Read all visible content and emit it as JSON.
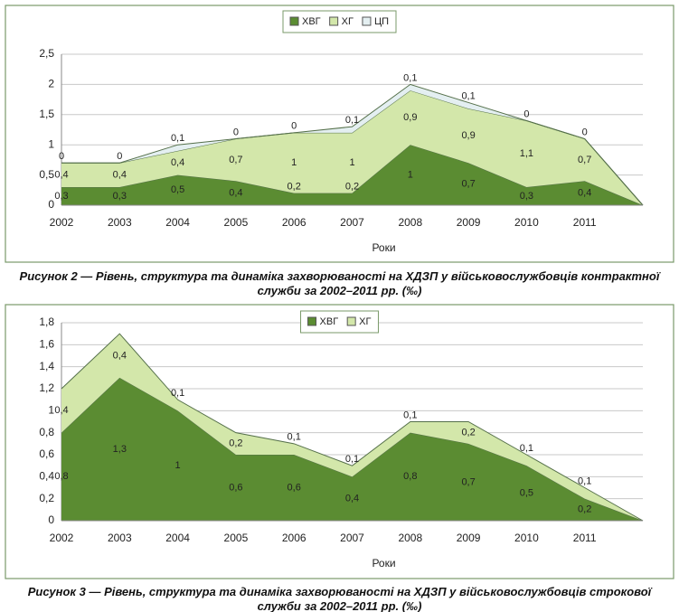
{
  "chart_data": [
    {
      "type": "stacked_area",
      "categories": [
        "2002",
        "2003",
        "2004",
        "2005",
        "2006",
        "2007",
        "2008",
        "2009",
        "2010",
        "2011",
        null
      ],
      "x_label": "Роки",
      "caption": "Рисунок 2 — Рівень, структура та динаміка захворюваності на ХДЗП у військовослужбовців контрактної служби за 2002–2011 рр. (‰)",
      "ylim": [
        0,
        2.5
      ],
      "yticks": [
        0,
        {
          "value": 0.5,
          "label": "0,5"
        },
        1,
        {
          "value": 1.5,
          "label": "1,5"
        },
        2,
        {
          "value": 2.5,
          "label": "2,5"
        }
      ],
      "grid": true,
      "legend": "top",
      "series": [
        {
          "name": "ХВГ",
          "color": "#5b8c32",
          "values": [
            0.3,
            0.3,
            0.5,
            0.4,
            0.2,
            0.2,
            1,
            0.7,
            0.3,
            0.4,
            0
          ],
          "value_labels": [
            "0,3",
            "0,3",
            "0,5",
            "0,4",
            "0,2",
            "0,2",
            "1",
            "0,7",
            "0,3",
            "0,4",
            null
          ]
        },
        {
          "name": "ХГ",
          "color": "#d3e7aa",
          "values": [
            0.4,
            0.4,
            0.4,
            0.7,
            1,
            1,
            0.9,
            0.9,
            1.1,
            0.7,
            0
          ],
          "value_labels": [
            "0,4",
            "0,4",
            "0,4",
            "0,7",
            "1",
            "1",
            "0,9",
            "0,9",
            "1,1",
            "0,7",
            null
          ]
        },
        {
          "name": "ЦП",
          "color": "#e4eff1",
          "values": [
            0,
            0,
            0.1,
            0,
            0,
            0.1,
            0.1,
            0.1,
            0,
            0,
            0
          ],
          "value_labels": [
            "0",
            "0",
            "0,1",
            "0",
            "0",
            "0,1",
            "0,1",
            "0,1",
            "0",
            "0",
            null
          ]
        }
      ]
    },
    {
      "type": "stacked_area",
      "categories": [
        "2002",
        "2003",
        "2004",
        "2005",
        "2006",
        "2007",
        "2008",
        "2009",
        "2010",
        "2011",
        null
      ],
      "x_label": "Роки",
      "caption": "Рисунок 3 — Рівень, структура та динаміка захворюваності на ХДЗП у військовослужбовців строкової служби за 2002–2011 рр. (‰)",
      "ylim": [
        0,
        1.8
      ],
      "yticks": [
        0,
        {
          "value": 0.2,
          "label": "0,2"
        },
        {
          "value": 0.4,
          "label": "0,4"
        },
        {
          "value": 0.6,
          "label": "0,6"
        },
        {
          "value": 0.8,
          "label": "0,8"
        },
        1,
        {
          "value": 1.2,
          "label": "1,2"
        },
        {
          "value": 1.4,
          "label": "1,4"
        },
        {
          "value": 1.6,
          "label": "1,6"
        },
        {
          "value": 1.8,
          "label": "1,8"
        }
      ],
      "grid": true,
      "legend": "top",
      "series": [
        {
          "name": "ХВГ",
          "color": "#5b8c32",
          "values": [
            0.8,
            1.3,
            1,
            0.6,
            0.6,
            0.4,
            0.8,
            0.7,
            0.5,
            0.2,
            0
          ],
          "value_labels": [
            "0,8",
            "1,3",
            "1",
            "0,6",
            "0,6",
            "0,4",
            "0,8",
            "0,7",
            "0,5",
            "0,2",
            null
          ]
        },
        {
          "name": "ХГ",
          "color": "#d3e7aa",
          "values": [
            0.4,
            0.4,
            0.1,
            0.2,
            0.1,
            0.1,
            0.1,
            0.2,
            0.1,
            0.1,
            0
          ],
          "value_labels": [
            "0,4",
            "0,4",
            "0,1",
            "0,2",
            "0,1",
            "0,1",
            "0,1",
            "0,2",
            "0,1",
            "0,1",
            null
          ]
        }
      ]
    }
  ]
}
